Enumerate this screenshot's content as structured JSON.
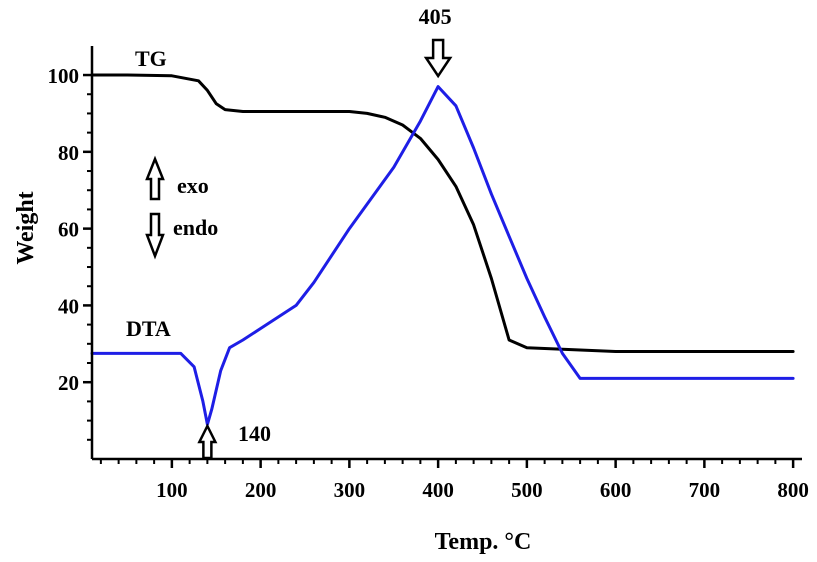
{
  "chart_data": {
    "type": "line",
    "xlabel": "Temp. °C",
    "ylabel": "Weight",
    "xlim": [
      10,
      810
    ],
    "ylim": [
      0,
      106
    ],
    "x_ticks": [
      100,
      200,
      300,
      400,
      500,
      600,
      700,
      800
    ],
    "y_ticks": [
      20,
      40,
      60,
      80,
      100
    ],
    "grid": false,
    "colors": {
      "TG": "#000000",
      "DTA": "#1e1ee6"
    },
    "series": [
      {
        "name": "TG",
        "x": [
          10,
          50,
          100,
          130,
          140,
          150,
          160,
          180,
          200,
          250,
          300,
          320,
          340,
          360,
          380,
          400,
          420,
          440,
          460,
          480,
          500,
          550,
          600,
          650,
          700,
          750,
          800
        ],
        "y": [
          100,
          100,
          99.8,
          98.5,
          96,
          92.5,
          91,
          90.5,
          90.5,
          90.5,
          90.5,
          90,
          89,
          87,
          83.5,
          78,
          71,
          61,
          47,
          31,
          29,
          28.5,
          28,
          28,
          28,
          28,
          28
        ]
      },
      {
        "name": "DTA",
        "x": [
          10,
          60,
          110,
          125,
          135,
          140,
          145,
          155,
          165,
          180,
          200,
          240,
          260,
          300,
          350,
          380,
          400,
          420,
          440,
          460,
          480,
          500,
          520,
          540,
          560,
          600,
          700,
          800
        ],
        "y": [
          27.5,
          27.5,
          27.5,
          24,
          15,
          9,
          13,
          23,
          29,
          31,
          34,
          40,
          46,
          60,
          76,
          88,
          97,
          92,
          81,
          69,
          58,
          47,
          37,
          27.5,
          21,
          21,
          21,
          21
        ]
      }
    ],
    "annotations": [
      {
        "text": "TG",
        "x": 170,
        "y": 106
      },
      {
        "text": "DTA",
        "x": 82,
        "y": 34
      },
      {
        "text": "405",
        "x": 400,
        "arrow": "down"
      },
      {
        "text": "140",
        "x": 140,
        "arrow": "up"
      },
      {
        "text": "exo",
        "arrow": "up"
      },
      {
        "text": "endo",
        "arrow": "down"
      }
    ]
  }
}
